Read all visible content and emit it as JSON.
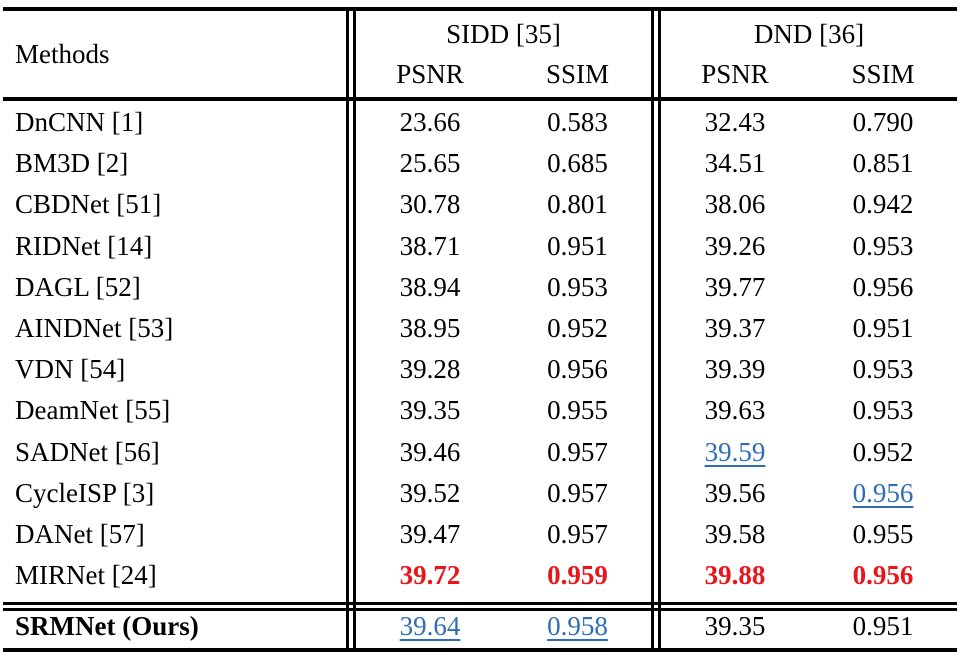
{
  "header": {
    "methods": "Methods",
    "groups": [
      {
        "name": "SIDD [35]",
        "cols": [
          "PSNR",
          "SSIM"
        ]
      },
      {
        "name": "DND [36]",
        "cols": [
          "PSNR",
          "SSIM"
        ]
      }
    ]
  },
  "rows": [
    {
      "method": "DnCNN [1]",
      "sidd_psnr": "23.66",
      "sidd_ssim": "0.583",
      "dnd_psnr": "32.43",
      "dnd_ssim": "0.790"
    },
    {
      "method": "BM3D [2]",
      "sidd_psnr": "25.65",
      "sidd_ssim": "0.685",
      "dnd_psnr": "34.51",
      "dnd_ssim": "0.851"
    },
    {
      "method": "CBDNet [51]",
      "sidd_psnr": "30.78",
      "sidd_ssim": "0.801",
      "dnd_psnr": "38.06",
      "dnd_ssim": "0.942"
    },
    {
      "method": "RIDNet [14]",
      "sidd_psnr": "38.71",
      "sidd_ssim": "0.951",
      "dnd_psnr": "39.26",
      "dnd_ssim": "0.953"
    },
    {
      "method": "DAGL [52]",
      "sidd_psnr": "38.94",
      "sidd_ssim": "0.953",
      "dnd_psnr": "39.77",
      "dnd_ssim": "0.956"
    },
    {
      "method": "AINDNet [53]",
      "sidd_psnr": "38.95",
      "sidd_ssim": "0.952",
      "dnd_psnr": "39.37",
      "dnd_ssim": "0.951"
    },
    {
      "method": "VDN [54]",
      "sidd_psnr": "39.28",
      "sidd_ssim": "0.956",
      "dnd_psnr": "39.39",
      "dnd_ssim": "0.953"
    },
    {
      "method": "DeamNet [55]",
      "sidd_psnr": "39.35",
      "sidd_ssim": "0.955",
      "dnd_psnr": "39.63",
      "dnd_ssim": "0.953"
    },
    {
      "method": "SADNet [56]",
      "sidd_psnr": "39.46",
      "sidd_ssim": "0.957",
      "dnd_psnr": "39.59",
      "dnd_ssim": "0.952"
    },
    {
      "method": "CycleISP [3]",
      "sidd_psnr": "39.52",
      "sidd_ssim": "0.957",
      "dnd_psnr": "39.56",
      "dnd_ssim": "0.956"
    },
    {
      "method": "DANet [57]",
      "sidd_psnr": "39.47",
      "sidd_ssim": "0.957",
      "dnd_psnr": "39.58",
      "dnd_ssim": "0.955"
    },
    {
      "method": "MIRNet [24]",
      "sidd_psnr": "39.72",
      "sidd_ssim": "0.959",
      "dnd_psnr": "39.88",
      "dnd_ssim": "0.956"
    }
  ],
  "ours": {
    "method": "SRMNet (Ours)",
    "sidd_psnr": "39.64",
    "sidd_ssim": "0.958",
    "dnd_psnr": "39.35",
    "dnd_ssim": "0.951"
  },
  "colors": {
    "best": "#e8151b",
    "second": "#2f6db5"
  }
}
